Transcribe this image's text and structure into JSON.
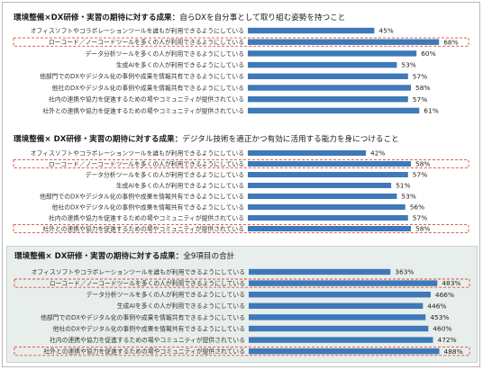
{
  "colors": {
    "bar": "#3e79b9",
    "highlight_border": "#e04a3a",
    "panel3_bg": "#e8eeeb"
  },
  "chart_data": [
    {
      "type": "bar",
      "orientation": "horizontal",
      "title": "環境整備×DX研修・実習の期待に対する成果：",
      "subtitle": "自らDXを自分事として取り組む姿勢を持つこと",
      "categories": [
        "オフィスソフトやコラボレーションツールを誰もが利用できるようにしている",
        "ローコード／ノーコードツールを多くの人が利用できるようにしている",
        "データ分析ツールを多くの人が利用できるようにしている",
        "生成AIを多くの人が利用できるようにしている",
        "他部門でのDXやデジタル化の事例や成果を情報共有できるようにしている",
        "他社のDXやデジタル化の事例や成果を情報共有できるようにしている",
        "社内の連携や協力を促進するための場やコミュニティが提供されている",
        "社外との連携や協力を促進するための場やコミュニティが提供されている"
      ],
      "values": [
        45,
        68,
        60,
        53,
        57,
        58,
        57,
        61
      ],
      "value_labels": [
        "45%",
        "68%",
        "60%",
        "53%",
        "57%",
        "58%",
        "57%",
        "61%"
      ],
      "unit": "%",
      "highlighted": [
        1
      ],
      "xlim": [
        0,
        75
      ]
    },
    {
      "type": "bar",
      "orientation": "horizontal",
      "title": "環境整備× DX研修・実習の期待に対する成果：",
      "subtitle": "デジタル技術を適正かつ有効に活用する能力を身につけること",
      "categories": [
        "オフィスソフトやコラボレーションツールを誰もが利用できるようにしている",
        "ローコード／ノーコードツールを多くの人が利用できるようにしている",
        "データ分析ツールを多くの人が利用できるようにしている",
        "生成AIを多くの人が利用できるようにしている",
        "他部門でのDXやデジタル化の事例や成果を情報共有できるようにしている",
        "他社のDXやデジタル化の事例や成果を情報共有できるようにしている",
        "社内の連携や協力を促進するための場やコミュニティが提供されている",
        "社外との連携や協力を促進するための場やコミュニティが提供されている"
      ],
      "values": [
        42,
        58,
        57,
        51,
        53,
        56,
        57,
        58
      ],
      "value_labels": [
        "42%",
        "58%",
        "57%",
        "51%",
        "53%",
        "56%",
        "57%",
        "58%"
      ],
      "unit": "%",
      "highlighted": [
        1,
        7
      ],
      "xlim": [
        0,
        75
      ]
    },
    {
      "type": "bar",
      "orientation": "horizontal",
      "title": "環境整備× DX研修・実習の期待に対する成果：",
      "subtitle": "全9項目の合計",
      "categories": [
        "オフィスソフトやコラボレーションツールを誰もが利用できるようにしている",
        "ローコード／ノーコードツールを多くの人が利用できるようにしている",
        "データ分析ツールを多くの人が利用できるようにしている",
        "生成AIを多くの人が利用できるようにしている",
        "他部門でのDXやデジタル化の事例や成果を情報共有できるようにしている",
        "他社のDXやデジタル化の事例や成果を情報共有できるようにしている",
        "社内の連携や協力を促進するための場やコミュニティが提供されている",
        "社外との連携や協力を促進するための場やコミュニティが提供されている"
      ],
      "values": [
        363,
        483,
        466,
        446,
        453,
        460,
        472,
        488
      ],
      "value_labels": [
        "363%",
        "483%",
        "466%",
        "446%",
        "453%",
        "460%",
        "472%",
        "488%"
      ],
      "unit": "%",
      "highlighted": [
        1,
        7
      ],
      "xlim": [
        0,
        540
      ]
    }
  ]
}
